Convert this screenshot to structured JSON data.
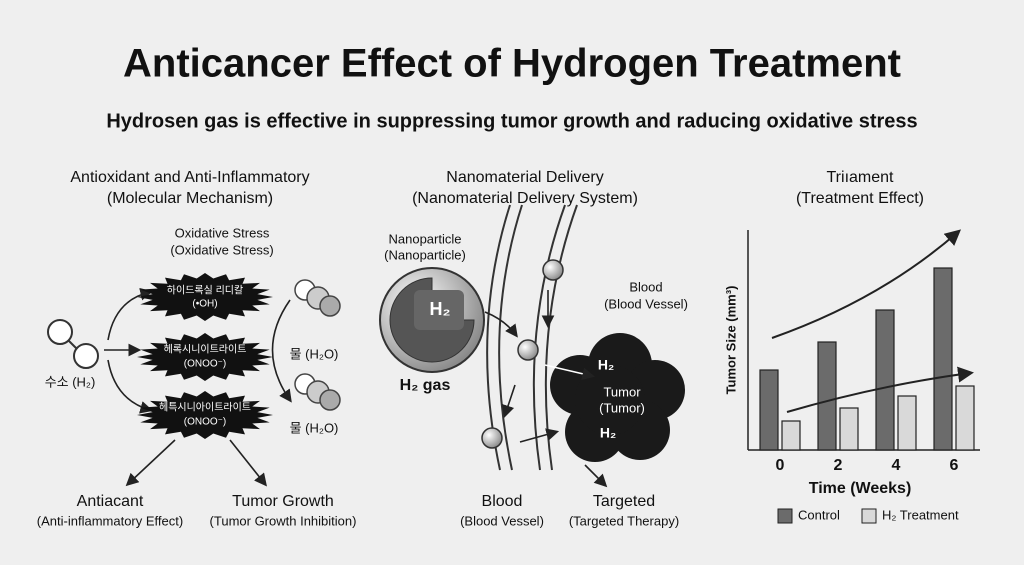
{
  "header": {
    "title": "Anticancer Effect of Hydrogen Treatment",
    "subtitle": "Hydrosen gas is effective in suppressing tumor growth and raducing oxidative stress"
  },
  "left": {
    "title": [
      "Antioxidant and Anti-Inflammatory",
      "(Molecular Mechanism)"
    ],
    "stress_label": [
      "Oxidative Stress",
      "(Oxidative Stress)"
    ],
    "hydrogen": "수소 (H₂)",
    "radicals": [
      [
        "하이드록실 리디칼",
        "(•OH)"
      ],
      [
        "헤록시니이트라이트",
        "(ONOO⁻)"
      ],
      [
        "헤특시니아이트라이트",
        "(ONOO⁻)"
      ]
    ],
    "water": [
      "물 (H₂O)",
      "물 (H₂O)"
    ],
    "outcomes": [
      [
        "Antiacant",
        "(Anti-inflammatory Effect)"
      ],
      [
        "Tumor Growth",
        "(Tumor Growth Inhibition)"
      ]
    ]
  },
  "middle": {
    "title": [
      "Nanomaterial Delivery",
      "(Nanomaterial Delivery System)"
    ],
    "nanoparticle": [
      "Nanoparticle",
      "(Nanoparticle)"
    ],
    "core": "H₂",
    "gas": "H₂ gas",
    "blood_top": [
      "Blood",
      "(Blood Vessel)"
    ],
    "tumor": [
      "Tumor",
      "(Tumor)"
    ],
    "tumor_h2": [
      "H₂",
      "H₂"
    ],
    "blood_bottom": [
      "Blood",
      "(Blood Vessel)"
    ],
    "targeted": [
      "Targeted",
      "(Targeted Therapy)"
    ]
  },
  "chart_data": {
    "type": "bar",
    "title": "Triıament",
    "subtitle": "(Treatment Effect)",
    "categories": [
      "0",
      "2",
      "4",
      "6"
    ],
    "series": [
      {
        "name": "Control",
        "color": "#6b6b6b",
        "values": [
          80,
          108,
          140,
          182
        ]
      },
      {
        "name": "H₂ Treatment",
        "color": "#d9d9d9",
        "values": [
          29,
          42,
          54,
          64
        ]
      }
    ],
    "ylim": [
      0,
      220
    ],
    "x_label": "Time (Weeks)",
    "y_label": "Tumor Size (mm³)",
    "legend": "bottom"
  }
}
